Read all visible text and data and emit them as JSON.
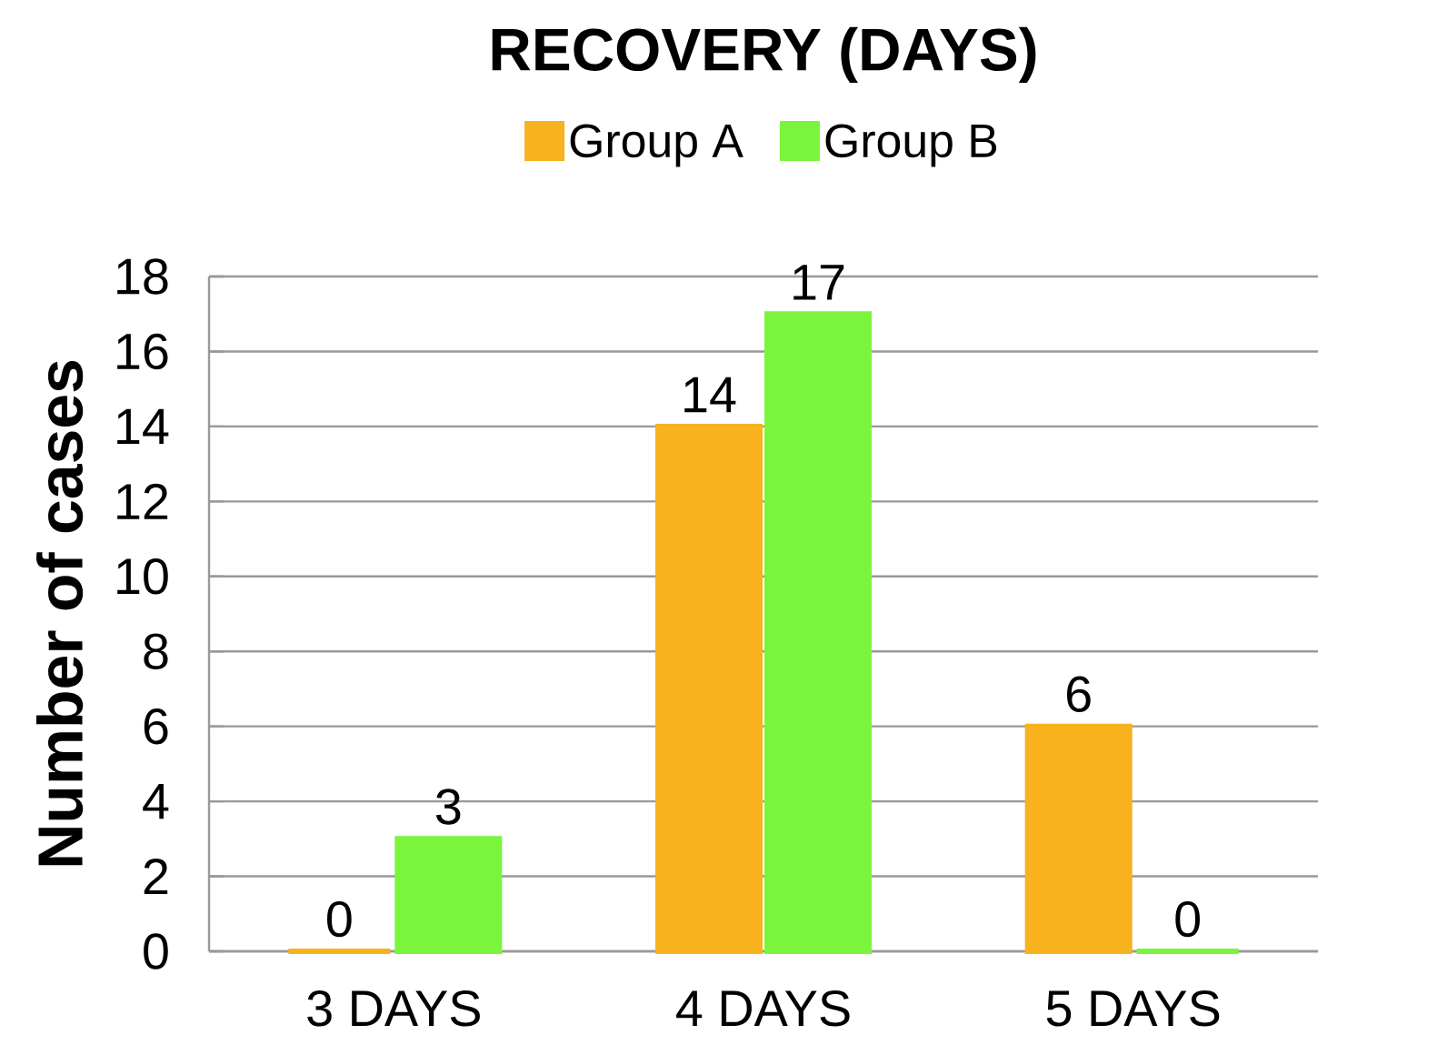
{
  "chart_data": {
    "type": "bar",
    "title": "RECOVERY (DAYS)",
    "ylabel": "Number of cases",
    "categories": [
      "3 DAYS",
      "4 DAYS",
      "5 DAYS"
    ],
    "series": [
      {
        "name": "Group A",
        "color": "#f7b21e",
        "values": [
          0,
          14,
          6
        ]
      },
      {
        "name": "Group B",
        "color": "#7af53c",
        "values": [
          3,
          17,
          0
        ]
      }
    ],
    "ylim": [
      0,
      18
    ],
    "yticks": [
      0,
      2,
      4,
      6,
      8,
      10,
      12,
      14,
      16,
      18
    ],
    "grid": "y",
    "legend": "top",
    "data_labels": true
  }
}
